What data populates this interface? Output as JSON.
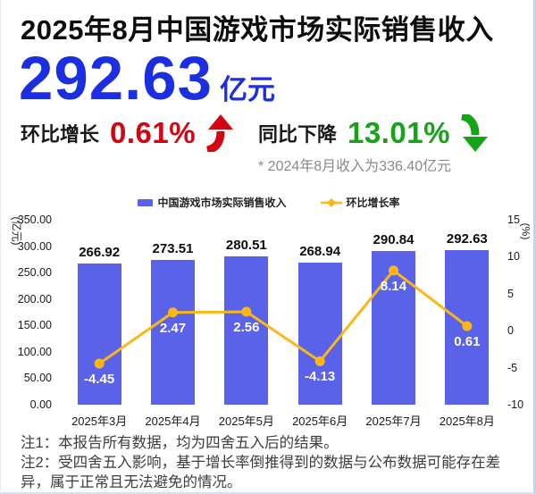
{
  "page": {
    "title": "2025年8月中国游戏市场实际销售收入",
    "headline_value": "292.63",
    "headline_unit": "亿元",
    "mom": {
      "label": "环比增长",
      "value": "0.61%"
    },
    "yoy": {
      "label": "同比下降",
      "value": "13.01%"
    },
    "footnote": "* 2024年8月收入为336.40亿元"
  },
  "colors": {
    "headline_blue": "#1b2ee0",
    "mom_red": "#d30512",
    "yoy_green": "#17a317",
    "bar_blue": "#5a62e9",
    "line_yellow": "#fcb714"
  },
  "chart_data": {
    "type": "bar+line",
    "categories": [
      "2025年3月",
      "2025年4月",
      "2025年5月",
      "2025年6月",
      "2025年7月",
      "2025年8月"
    ],
    "series": [
      {
        "name": "中国游戏市场实际销售收入",
        "type": "bar",
        "axis": "left",
        "values": [
          266.92,
          273.51,
          280.51,
          268.94,
          290.84,
          292.63
        ],
        "color": "#5a62e9"
      },
      {
        "name": "环比增长率",
        "type": "line",
        "axis": "right",
        "values": [
          -4.45,
          2.47,
          2.56,
          -4.13,
          8.14,
          0.61
        ],
        "color": "#fcb714"
      }
    ],
    "left_axis": {
      "label": "(亿元)",
      "min": 0,
      "max": 350,
      "ticks": [
        "350.00",
        "300.00",
        "250.00",
        "200.00",
        "150.00",
        "100.00",
        "50.00",
        "0.00"
      ]
    },
    "right_axis": {
      "label": "(%)",
      "min": -10,
      "max": 15,
      "ticks": [
        "15",
        "10",
        "5",
        "0",
        "-5",
        "-10"
      ]
    },
    "legend_position": "top",
    "grid": false,
    "bar_value_labels": "above",
    "line_value_labels": "below-marker"
  },
  "notes": {
    "note1": "注1：本报告所有数据，均为四舍五入后的结果。",
    "note2": "注2：受四舍五入影响，基于增长率倒推得到的数据与公布数据可能存在差异，属于正常且无法避免的情况。"
  }
}
